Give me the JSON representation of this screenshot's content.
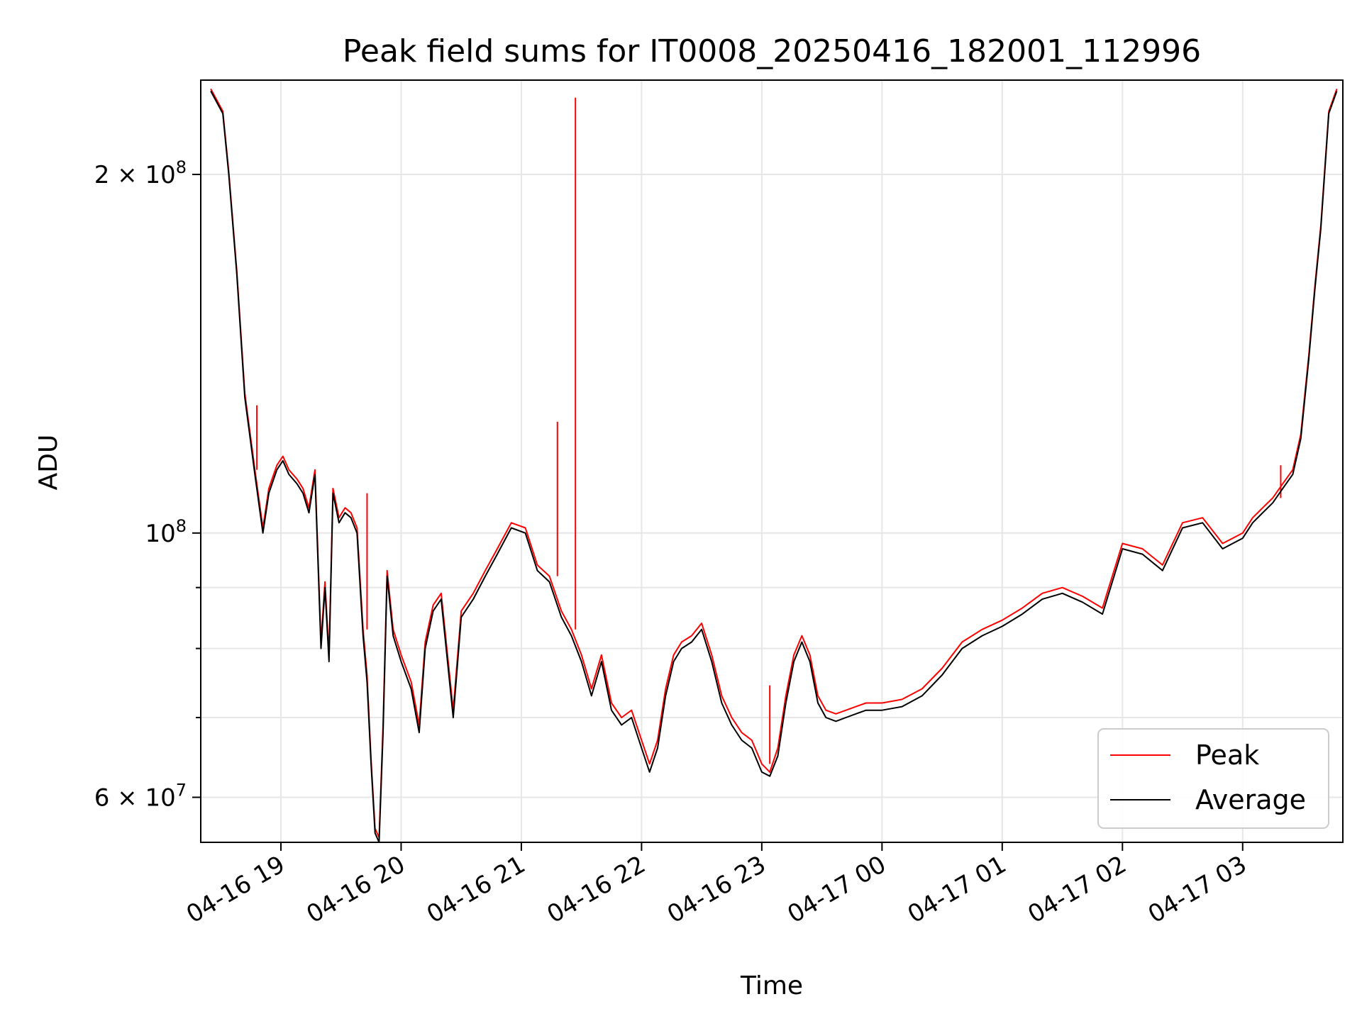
{
  "chart_data": {
    "type": "line",
    "title": "Peak field sums for IT0008_20250416_182001_112996",
    "xlabel": "Time",
    "ylabel": "ADU",
    "y_scale": "log",
    "ylim": [
      55000000,
      240000000
    ],
    "xlim": [
      "2025-04-16 18:20",
      "2025-04-17 03:50"
    ],
    "x_ticks": [
      {
        "value": "2025-04-16 19:00",
        "label": "04-16 19"
      },
      {
        "value": "2025-04-16 20:00",
        "label": "04-16 20"
      },
      {
        "value": "2025-04-16 21:00",
        "label": "04-16 21"
      },
      {
        "value": "2025-04-16 22:00",
        "label": "04-16 22"
      },
      {
        "value": "2025-04-16 23:00",
        "label": "04-16 23"
      },
      {
        "value": "2025-04-17 00:00",
        "label": "04-17 00"
      },
      {
        "value": "2025-04-17 01:00",
        "label": "04-17 01"
      },
      {
        "value": "2025-04-17 02:00",
        "label": "04-17 02"
      },
      {
        "value": "2025-04-17 03:00",
        "label": "04-17 03"
      }
    ],
    "y_ticks": [
      {
        "value": 60000000,
        "base": "6",
        "exp": "7"
      },
      {
        "value": 100000000,
        "base": "",
        "exp": "8"
      },
      {
        "value": 200000000,
        "base": "2",
        "exp": "8"
      }
    ],
    "y_minor_ticks": [
      70000000,
      80000000,
      90000000
    ],
    "grid": true,
    "legend_position": "bottom-right",
    "series": [
      {
        "name": "Average",
        "color": "#000000",
        "x": [
          "2025-04-16 18:25",
          "2025-04-16 18:31",
          "2025-04-16 18:34",
          "2025-04-16 18:38",
          "2025-04-16 18:42",
          "2025-04-16 18:47",
          "2025-04-16 18:51",
          "2025-04-16 18:54",
          "2025-04-16 18:58",
          "2025-04-16 19:01",
          "2025-04-16 19:04",
          "2025-04-16 19:08",
          "2025-04-16 19:11",
          "2025-04-16 19:14",
          "2025-04-16 19:17",
          "2025-04-16 19:20",
          "2025-04-16 19:22",
          "2025-04-16 19:24",
          "2025-04-16 19:26",
          "2025-04-16 19:29",
          "2025-04-16 19:32",
          "2025-04-16 19:35",
          "2025-04-16 19:38",
          "2025-04-16 19:41",
          "2025-04-16 19:43",
          "2025-04-16 19:45",
          "2025-04-16 19:47",
          "2025-04-16 19:49",
          "2025-04-16 19:51",
          "2025-04-16 19:53",
          "2025-04-16 19:56",
          "2025-04-16 20:00",
          "2025-04-16 20:05",
          "2025-04-16 20:09",
          "2025-04-16 20:12",
          "2025-04-16 20:16",
          "2025-04-16 20:20",
          "2025-04-16 20:26",
          "2025-04-16 20:30",
          "2025-04-16 20:36",
          "2025-04-16 20:42",
          "2025-04-16 20:48",
          "2025-04-16 20:55",
          "2025-04-16 21:02",
          "2025-04-16 21:08",
          "2025-04-16 21:14",
          "2025-04-16 21:20",
          "2025-04-16 21:25",
          "2025-04-16 21:30",
          "2025-04-16 21:35",
          "2025-04-16 21:40",
          "2025-04-16 21:45",
          "2025-04-16 21:50",
          "2025-04-16 21:55",
          "2025-04-16 22:00",
          "2025-04-16 22:04",
          "2025-04-16 22:08",
          "2025-04-16 22:12",
          "2025-04-16 22:16",
          "2025-04-16 22:20",
          "2025-04-16 22:25",
          "2025-04-16 22:30",
          "2025-04-16 22:35",
          "2025-04-16 22:40",
          "2025-04-16 22:45",
          "2025-04-16 22:50",
          "2025-04-16 22:55",
          "2025-04-16 23:00",
          "2025-04-16 23:04",
          "2025-04-16 23:08",
          "2025-04-16 23:12",
          "2025-04-16 23:16",
          "2025-04-16 23:20",
          "2025-04-16 23:24",
          "2025-04-16 23:28",
          "2025-04-16 23:32",
          "2025-04-16 23:37",
          "2025-04-16 23:42",
          "2025-04-16 23:47",
          "2025-04-16 23:52",
          "2025-04-17 00:00",
          "2025-04-17 00:10",
          "2025-04-17 00:20",
          "2025-04-17 00:30",
          "2025-04-17 00:40",
          "2025-04-17 00:50",
          "2025-04-17 01:00",
          "2025-04-17 01:10",
          "2025-04-17 01:20",
          "2025-04-17 01:30",
          "2025-04-17 01:40",
          "2025-04-17 01:50",
          "2025-04-17 02:00",
          "2025-04-17 02:10",
          "2025-04-17 02:20",
          "2025-04-17 02:30",
          "2025-04-17 02:40",
          "2025-04-17 02:50",
          "2025-04-17 03:00",
          "2025-04-17 03:05",
          "2025-04-17 03:10",
          "2025-04-17 03:15",
          "2025-04-17 03:20",
          "2025-04-17 03:25",
          "2025-04-17 03:29",
          "2025-04-17 03:33",
          "2025-04-17 03:36",
          "2025-04-17 03:39",
          "2025-04-17 03:43",
          "2025-04-17 03:47"
        ],
        "y": [
          235000000,
          225000000,
          200000000,
          165000000,
          130000000,
          112000000,
          100000000,
          108000000,
          113000000,
          115000000,
          112000000,
          110000000,
          108000000,
          104000000,
          112000000,
          80000000,
          90000000,
          78000000,
          108000000,
          102000000,
          104000000,
          103000000,
          100000000,
          82000000,
          75000000,
          64000000,
          56000000,
          55000000,
          68000000,
          92000000,
          82000000,
          78000000,
          74000000,
          68000000,
          80000000,
          86000000,
          88000000,
          70000000,
          85000000,
          88000000,
          92000000,
          96000000,
          101000000,
          100000000,
          93000000,
          91000000,
          85000000,
          82000000,
          78000000,
          73000000,
          78000000,
          71000000,
          69000000,
          70000000,
          66000000,
          63000000,
          66000000,
          73000000,
          78000000,
          80000000,
          81000000,
          83000000,
          78000000,
          72000000,
          69000000,
          67000000,
          66000000,
          63000000,
          62500000,
          65000000,
          72000000,
          78000000,
          81000000,
          78000000,
          72000000,
          70000000,
          69500000,
          70000000,
          70500000,
          71000000,
          71000000,
          71500000,
          73000000,
          76000000,
          80000000,
          82000000,
          83500000,
          85500000,
          88000000,
          89000000,
          87500000,
          85500000,
          97000000,
          96000000,
          93000000,
          101000000,
          102000000,
          97000000,
          99000000,
          102000000,
          104000000,
          106000000,
          109000000,
          112000000,
          120000000,
          140000000,
          160000000,
          180000000,
          225000000,
          235000000
        ]
      },
      {
        "name": "Peak",
        "color": "#ff0000",
        "x": [
          "2025-04-16 18:25",
          "2025-04-16 18:31",
          "2025-04-16 18:34",
          "2025-04-16 18:38",
          "2025-04-16 18:42",
          "2025-04-16 18:47",
          "2025-04-16 18:51",
          "2025-04-16 18:54",
          "2025-04-16 18:58",
          "2025-04-16 19:01",
          "2025-04-16 19:04",
          "2025-04-16 19:08",
          "2025-04-16 19:11",
          "2025-04-16 19:14",
          "2025-04-16 19:17",
          "2025-04-16 19:20",
          "2025-04-16 19:22",
          "2025-04-16 19:24",
          "2025-04-16 19:26",
          "2025-04-16 19:29",
          "2025-04-16 19:32",
          "2025-04-16 19:35",
          "2025-04-16 19:38",
          "2025-04-16 19:41",
          "2025-04-16 19:43",
          "2025-04-16 19:45",
          "2025-04-16 19:47",
          "2025-04-16 19:49",
          "2025-04-16 19:51",
          "2025-04-16 19:53",
          "2025-04-16 19:56",
          "2025-04-16 20:00",
          "2025-04-16 20:05",
          "2025-04-16 20:09",
          "2025-04-16 20:12",
          "2025-04-16 20:16",
          "2025-04-16 20:20",
          "2025-04-16 20:26",
          "2025-04-16 20:30",
          "2025-04-16 20:36",
          "2025-04-16 20:42",
          "2025-04-16 20:48",
          "2025-04-16 20:55",
          "2025-04-16 21:02",
          "2025-04-16 21:08",
          "2025-04-16 21:14",
          "2025-04-16 21:20",
          "2025-04-16 21:25",
          "2025-04-16 21:30",
          "2025-04-16 21:35",
          "2025-04-16 21:40",
          "2025-04-16 21:45",
          "2025-04-16 21:50",
          "2025-04-16 21:55",
          "2025-04-16 22:00",
          "2025-04-16 22:04",
          "2025-04-16 22:08",
          "2025-04-16 22:12",
          "2025-04-16 22:16",
          "2025-04-16 22:20",
          "2025-04-16 22:25",
          "2025-04-16 22:30",
          "2025-04-16 22:35",
          "2025-04-16 22:40",
          "2025-04-16 22:45",
          "2025-04-16 22:50",
          "2025-04-16 22:55",
          "2025-04-16 23:00",
          "2025-04-16 23:04",
          "2025-04-16 23:08",
          "2025-04-16 23:12",
          "2025-04-16 23:16",
          "2025-04-16 23:20",
          "2025-04-16 23:24",
          "2025-04-16 23:28",
          "2025-04-16 23:32",
          "2025-04-16 23:37",
          "2025-04-16 23:42",
          "2025-04-16 23:47",
          "2025-04-16 23:52",
          "2025-04-17 00:00",
          "2025-04-17 00:10",
          "2025-04-17 00:20",
          "2025-04-17 00:30",
          "2025-04-17 00:40",
          "2025-04-17 00:50",
          "2025-04-17 01:00",
          "2025-04-17 01:10",
          "2025-04-17 01:20",
          "2025-04-17 01:30",
          "2025-04-17 01:40",
          "2025-04-17 01:50",
          "2025-04-17 02:00",
          "2025-04-17 02:10",
          "2025-04-17 02:20",
          "2025-04-17 02:30",
          "2025-04-17 02:40",
          "2025-04-17 02:50",
          "2025-04-17 03:00",
          "2025-04-17 03:05",
          "2025-04-17 03:10",
          "2025-04-17 03:15",
          "2025-04-17 03:20",
          "2025-04-17 03:25",
          "2025-04-17 03:29",
          "2025-04-17 03:33",
          "2025-04-17 03:36",
          "2025-04-17 03:39",
          "2025-04-17 03:43",
          "2025-04-17 03:47"
        ],
        "y": [
          236000000,
          226000000,
          201000000,
          166000000,
          131000000,
          113000000,
          101000000,
          109000000,
          114000000,
          116000000,
          113000000,
          111000000,
          109000000,
          105000000,
          113000000,
          81000000,
          91000000,
          79000000,
          109000000,
          103000000,
          105000000,
          104000000,
          101000000,
          83000000,
          76000000,
          64500000,
          56500000,
          55500000,
          69000000,
          93000000,
          83000000,
          79000000,
          75000000,
          69000000,
          81000000,
          87000000,
          89000000,
          71000000,
          86000000,
          89000000,
          93000000,
          97000000,
          102000000,
          101000000,
          94000000,
          92000000,
          86000000,
          83000000,
          79000000,
          74000000,
          79000000,
          72000000,
          70000000,
          71000000,
          67000000,
          64000000,
          67000000,
          74000000,
          79000000,
          81000000,
          82000000,
          84000000,
          79000000,
          73000000,
          70000000,
          68000000,
          67000000,
          64000000,
          63000000,
          66000000,
          73000000,
          79000000,
          82000000,
          79000000,
          73000000,
          71000000,
          70500000,
          71000000,
          71500000,
          72000000,
          72000000,
          72500000,
          74000000,
          77000000,
          81000000,
          83000000,
          84500000,
          86500000,
          89000000,
          90000000,
          88500000,
          86500000,
          98000000,
          97000000,
          94000000,
          102000000,
          103000000,
          98000000,
          100000000,
          103000000,
          105000000,
          107000000,
          110000000,
          113000000,
          121000000,
          141000000,
          161000000,
          181000000,
          226000000,
          236000000
        ]
      }
    ],
    "peak_spikes": [
      {
        "x": "2025-04-16 18:48",
        "y": 128000000
      },
      {
        "x": "2025-04-16 19:43",
        "y": 108000000
      },
      {
        "x": "2025-04-16 21:18",
        "y": 124000000
      },
      {
        "x": "2025-04-16 21:27",
        "y": 232000000
      },
      {
        "x": "2025-04-16 23:04",
        "y": 74500000
      },
      {
        "x": "2025-04-17 03:19",
        "y": 114000000
      }
    ]
  }
}
